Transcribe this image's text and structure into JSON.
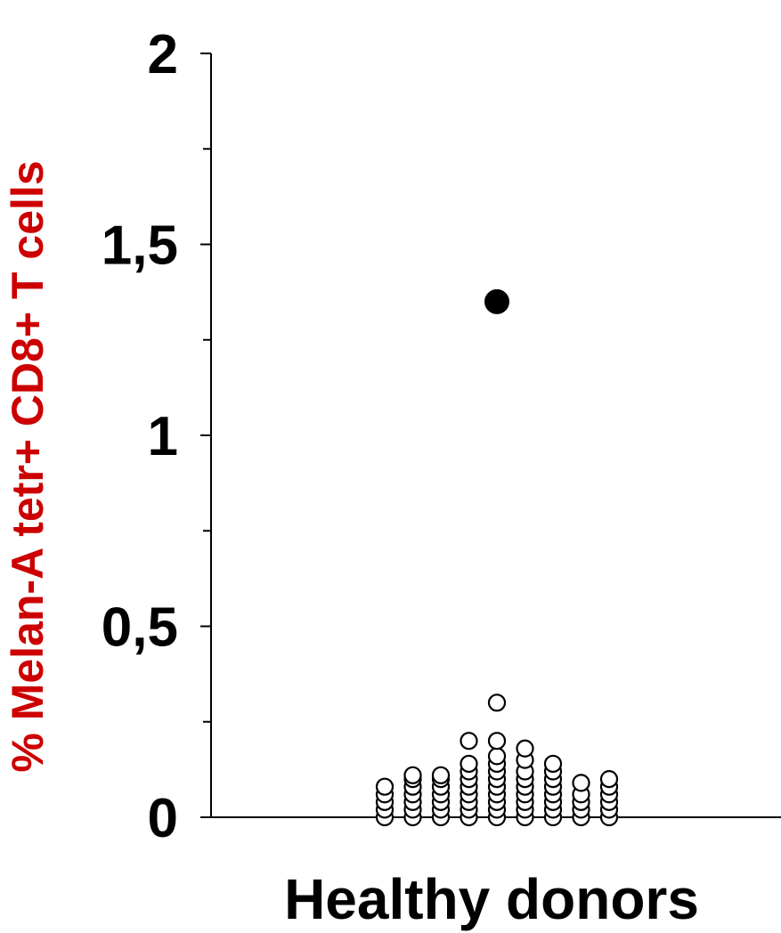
{
  "chart_data": {
    "type": "scatter",
    "title": "",
    "xlabel": "Healthy donors",
    "ylabel": "% Melan-A tetr+ CD8+ T cells",
    "ylabel_color": "#cc0000",
    "ylim": [
      0,
      2
    ],
    "yticks": [
      0,
      0.5,
      1,
      1.5,
      2
    ],
    "ytick_labels": [
      "0",
      "0,5",
      "1",
      "1,5",
      "2"
    ],
    "grid": false,
    "legend": "none",
    "columns": [
      1,
      2,
      3,
      4,
      5,
      6,
      7,
      8,
      9
    ],
    "series": [
      {
        "marker": "open-circle",
        "color": "#000000",
        "points": [
          {
            "x": 1,
            "y": 0
          },
          {
            "x": 1,
            "y": 0.02
          },
          {
            "x": 1,
            "y": 0.04
          },
          {
            "x": 1,
            "y": 0.06
          },
          {
            "x": 1,
            "y": 0.08
          },
          {
            "x": 2,
            "y": 0
          },
          {
            "x": 2,
            "y": 0.02
          },
          {
            "x": 2,
            "y": 0.04
          },
          {
            "x": 2,
            "y": 0.06
          },
          {
            "x": 2,
            "y": 0.08
          },
          {
            "x": 2,
            "y": 0.1
          },
          {
            "x": 2,
            "y": 0.11
          },
          {
            "x": 3,
            "y": 0
          },
          {
            "x": 3,
            "y": 0.02
          },
          {
            "x": 3,
            "y": 0.04
          },
          {
            "x": 3,
            "y": 0.06
          },
          {
            "x": 3,
            "y": 0.08
          },
          {
            "x": 3,
            "y": 0.1
          },
          {
            "x": 3,
            "y": 0.11
          },
          {
            "x": 4,
            "y": 0
          },
          {
            "x": 4,
            "y": 0.02
          },
          {
            "x": 4,
            "y": 0.04
          },
          {
            "x": 4,
            "y": 0.06
          },
          {
            "x": 4,
            "y": 0.08
          },
          {
            "x": 4,
            "y": 0.1
          },
          {
            "x": 4,
            "y": 0.12
          },
          {
            "x": 4,
            "y": 0.14
          },
          {
            "x": 4,
            "y": 0.2
          },
          {
            "x": 5,
            "y": 0
          },
          {
            "x": 5,
            "y": 0.02
          },
          {
            "x": 5,
            "y": 0.04
          },
          {
            "x": 5,
            "y": 0.06
          },
          {
            "x": 5,
            "y": 0.08
          },
          {
            "x": 5,
            "y": 0.1
          },
          {
            "x": 5,
            "y": 0.12
          },
          {
            "x": 5,
            "y": 0.14
          },
          {
            "x": 5,
            "y": 0.16
          },
          {
            "x": 5,
            "y": 0.2
          },
          {
            "x": 5,
            "y": 0.3
          },
          {
            "x": 6,
            "y": 0
          },
          {
            "x": 6,
            "y": 0.02
          },
          {
            "x": 6,
            "y": 0.04
          },
          {
            "x": 6,
            "y": 0.06
          },
          {
            "x": 6,
            "y": 0.08
          },
          {
            "x": 6,
            "y": 0.1
          },
          {
            "x": 6,
            "y": 0.12
          },
          {
            "x": 6,
            "y": 0.15
          },
          {
            "x": 6,
            "y": 0.18
          },
          {
            "x": 7,
            "y": 0
          },
          {
            "x": 7,
            "y": 0.02
          },
          {
            "x": 7,
            "y": 0.04
          },
          {
            "x": 7,
            "y": 0.06
          },
          {
            "x": 7,
            "y": 0.08
          },
          {
            "x": 7,
            "y": 0.1
          },
          {
            "x": 7,
            "y": 0.12
          },
          {
            "x": 7,
            "y": 0.14
          },
          {
            "x": 8,
            "y": 0
          },
          {
            "x": 8,
            "y": 0.02
          },
          {
            "x": 8,
            "y": 0.04
          },
          {
            "x": 8,
            "y": 0.06
          },
          {
            "x": 8,
            "y": 0.09
          },
          {
            "x": 9,
            "y": 0
          },
          {
            "x": 9,
            "y": 0.02
          },
          {
            "x": 9,
            "y": 0.04
          },
          {
            "x": 9,
            "y": 0.06
          },
          {
            "x": 9,
            "y": 0.08
          },
          {
            "x": 9,
            "y": 0.1
          }
        ]
      },
      {
        "marker": "filled-circle",
        "color": "#000000",
        "points": [
          {
            "x": 5,
            "y": 1.35
          }
        ]
      }
    ]
  }
}
